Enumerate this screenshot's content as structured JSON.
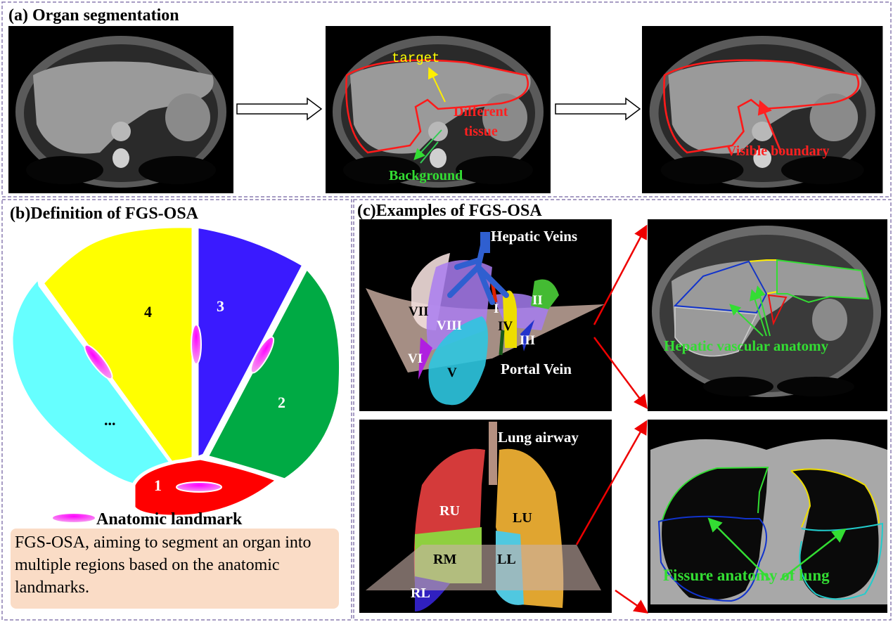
{
  "panel_a": {
    "title": "(a) Organ segmentation",
    "labels": {
      "target": "target",
      "different_tissue_1": "Different",
      "different_tissue_2": "tissue",
      "background": "Background",
      "visible_boundary": "Visible boundary"
    }
  },
  "panel_b": {
    "title": "(b)Definition of FGS-OSA",
    "regions": [
      "1",
      "2",
      "3",
      "4",
      "..."
    ],
    "legend": "Anatomic landmark",
    "description": "FGS-OSA, aiming to segment an organ into multiple regions based on the anatomic landmarks."
  },
  "panel_c": {
    "title": "(c)Examples of FGS-OSA",
    "liver": {
      "hepatic_veins": "Hepatic Veins",
      "portal_vein": "Portal Vein",
      "segments": [
        "I",
        "II",
        "III",
        "IV",
        "V",
        "VI",
        "VII",
        "VIII"
      ],
      "annotation": "Hepatic vascular anatomy"
    },
    "lung": {
      "airway": "Lung airway",
      "lobes": [
        "RU",
        "RM",
        "RL",
        "LU",
        "LL"
      ],
      "annotation": "Fissure anatomy of lung"
    }
  },
  "colors": {
    "frame": "#8a7cb0",
    "red": "#ff0000",
    "green": "#33dd33",
    "yellow": "#ffff00",
    "landmark": "#ff00ff"
  }
}
